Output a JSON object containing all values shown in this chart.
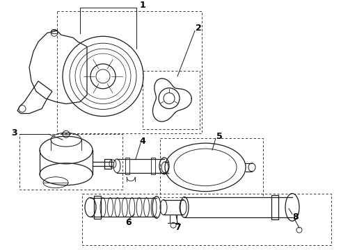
{
  "bg_color": "#ffffff",
  "line_color": "#1a1a1a",
  "label_color": "#000000",
  "figsize": [
    4.9,
    3.6
  ],
  "dpi": 100,
  "lw": 0.9
}
